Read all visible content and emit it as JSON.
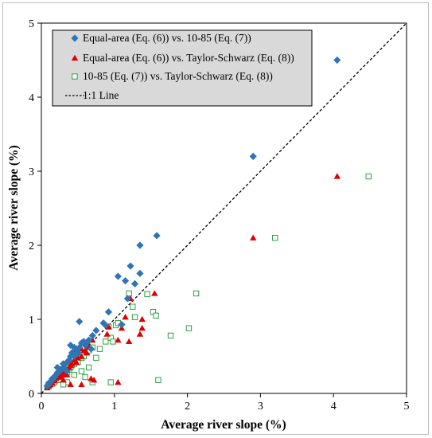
{
  "chart_data": {
    "type": "scatter",
    "xlabel": "Average river slope (%)",
    "ylabel": "Average river slope (%)",
    "xlim": [
      0,
      5
    ],
    "ylim": [
      0,
      5
    ],
    "x_ticks": [
      "0",
      "1",
      "2",
      "3",
      "4",
      "5"
    ],
    "y_ticks": [
      "0",
      "1",
      "2",
      "3",
      "4",
      "5"
    ],
    "grid": false,
    "legend_position": "top-left",
    "reference_line": {
      "name": "1:1 Line",
      "from": [
        0,
        0
      ],
      "to": [
        5,
        5
      ],
      "color": "#000000",
      "style": "dashed"
    },
    "series": [
      {
        "name": "Equal-area (Eq. (6)) vs. 10-85 (Eq. (7))",
        "marker": "diamond",
        "color": "#2E75B6",
        "points": [
          [
            0.08,
            0.1
          ],
          [
            0.1,
            0.12
          ],
          [
            0.12,
            0.15
          ],
          [
            0.15,
            0.18
          ],
          [
            0.18,
            0.22
          ],
          [
            0.2,
            0.25
          ],
          [
            0.22,
            0.28
          ],
          [
            0.25,
            0.3
          ],
          [
            0.28,
            0.33
          ],
          [
            0.3,
            0.35
          ],
          [
            0.33,
            0.4
          ],
          [
            0.35,
            0.42
          ],
          [
            0.38,
            0.45
          ],
          [
            0.4,
            0.5
          ],
          [
            0.42,
            0.55
          ],
          [
            0.45,
            0.5
          ],
          [
            0.48,
            0.6
          ],
          [
            0.5,
            0.55
          ],
          [
            0.52,
            0.62
          ],
          [
            0.55,
            0.68
          ],
          [
            0.58,
            0.7
          ],
          [
            0.6,
            0.65
          ],
          [
            0.65,
            0.72
          ],
          [
            0.7,
            0.78
          ],
          [
            0.75,
            0.85
          ],
          [
            0.4,
            0.65
          ],
          [
            0.45,
            0.62
          ],
          [
            0.52,
            0.97
          ],
          [
            0.85,
            0.95
          ],
          [
            0.88,
            0.92
          ],
          [
            0.92,
            1.1
          ],
          [
            1.05,
            1.58
          ],
          [
            1.1,
            0.93
          ],
          [
            1.15,
            1.52
          ],
          [
            1.18,
            1.28
          ],
          [
            1.22,
            1.72
          ],
          [
            1.28,
            1.48
          ],
          [
            1.35,
            2.0
          ],
          [
            1.35,
            1.62
          ],
          [
            1.58,
            2.13
          ],
          [
            2.9,
            3.2
          ],
          [
            4.05,
            4.5
          ],
          [
            0.15,
            0.2
          ],
          [
            0.22,
            0.35
          ],
          [
            0.3,
            0.4
          ],
          [
            0.35,
            0.3
          ],
          [
            0.62,
            0.68
          ],
          [
            0.68,
            0.6
          ],
          [
            0.1,
            0.14
          ],
          [
            0.26,
            0.32
          ]
        ]
      },
      {
        "name": "Equal-area (Eq. (6)) vs. Taylor-Schwarz (Eq. (8))",
        "marker": "triangle",
        "color": "#E00000",
        "points": [
          [
            0.08,
            0.08
          ],
          [
            0.1,
            0.1
          ],
          [
            0.12,
            0.12
          ],
          [
            0.15,
            0.14
          ],
          [
            0.18,
            0.17
          ],
          [
            0.2,
            0.2
          ],
          [
            0.22,
            0.22
          ],
          [
            0.25,
            0.22
          ],
          [
            0.28,
            0.25
          ],
          [
            0.3,
            0.3
          ],
          [
            0.33,
            0.28
          ],
          [
            0.35,
            0.32
          ],
          [
            0.38,
            0.35
          ],
          [
            0.4,
            0.38
          ],
          [
            0.42,
            0.4
          ],
          [
            0.45,
            0.45
          ],
          [
            0.48,
            0.42
          ],
          [
            0.5,
            0.48
          ],
          [
            0.55,
            0.5
          ],
          [
            0.6,
            0.58
          ],
          [
            0.65,
            0.62
          ],
          [
            0.7,
            0.72
          ],
          [
            0.45,
            0.55
          ],
          [
            0.55,
            0.6
          ],
          [
            0.68,
            0.2
          ],
          [
            0.4,
            0.12
          ],
          [
            0.55,
            0.12
          ],
          [
            0.72,
            0.18
          ],
          [
            0.9,
            0.8
          ],
          [
            1.05,
            0.72
          ],
          [
            1.05,
            0.15
          ],
          [
            1.1,
            0.88
          ],
          [
            1.15,
            1.03
          ],
          [
            1.2,
            0.7
          ],
          [
            1.22,
            1.28
          ],
          [
            1.38,
            0.88
          ],
          [
            1.38,
            1.0
          ],
          [
            1.55,
            1.35
          ],
          [
            2.9,
            2.1
          ],
          [
            4.05,
            2.93
          ],
          [
            0.25,
            0.3
          ],
          [
            0.3,
            0.18
          ],
          [
            0.35,
            0.25
          ],
          [
            0.62,
            0.55
          ],
          [
            0.92,
            0.9
          ],
          [
            1.35,
            0.8
          ]
        ]
      },
      {
        "name": "10-85 (Eq. (7)) vs. Taylor-Schwarz (Eq. (8))",
        "marker": "square-open",
        "color": "#2EA043",
        "points": [
          [
            0.08,
            0.08
          ],
          [
            0.1,
            0.1
          ],
          [
            0.12,
            0.12
          ],
          [
            0.15,
            0.13
          ],
          [
            0.18,
            0.15
          ],
          [
            0.2,
            0.18
          ],
          [
            0.22,
            0.2
          ],
          [
            0.25,
            0.22
          ],
          [
            0.28,
            0.25
          ],
          [
            0.3,
            0.28
          ],
          [
            0.32,
            0.3
          ],
          [
            0.35,
            0.28
          ],
          [
            0.38,
            0.32
          ],
          [
            0.4,
            0.35
          ],
          [
            0.42,
            0.38
          ],
          [
            0.45,
            0.4
          ],
          [
            0.48,
            0.45
          ],
          [
            0.5,
            0.42
          ],
          [
            0.55,
            0.48
          ],
          [
            0.58,
            0.5
          ],
          [
            0.62,
            0.55
          ],
          [
            0.65,
            0.58
          ],
          [
            0.7,
            0.62
          ],
          [
            0.75,
            0.48
          ],
          [
            0.7,
            0.15
          ],
          [
            0.35,
            0.15
          ],
          [
            0.55,
            0.3
          ],
          [
            0.6,
            0.22
          ],
          [
            0.65,
            0.35
          ],
          [
            0.92,
            0.9
          ],
          [
            0.95,
            0.75
          ],
          [
            0.98,
            0.7
          ],
          [
            1.02,
            0.92
          ],
          [
            1.05,
            0.95
          ],
          [
            1.2,
            1.35
          ],
          [
            1.25,
            1.17
          ],
          [
            1.28,
            1.03
          ],
          [
            1.45,
            1.34
          ],
          [
            1.53,
            1.1
          ],
          [
            1.57,
            1.05
          ],
          [
            1.6,
            0.18
          ],
          [
            1.77,
            0.78
          ],
          [
            2.02,
            0.88
          ],
          [
            2.12,
            1.35
          ],
          [
            3.2,
            2.1
          ],
          [
            4.48,
            2.93
          ],
          [
            0.25,
            0.18
          ],
          [
            0.3,
            0.12
          ],
          [
            0.45,
            0.25
          ],
          [
            0.8,
            0.6
          ],
          [
            0.88,
            0.7
          ],
          [
            0.95,
            0.15
          ]
        ]
      }
    ]
  }
}
